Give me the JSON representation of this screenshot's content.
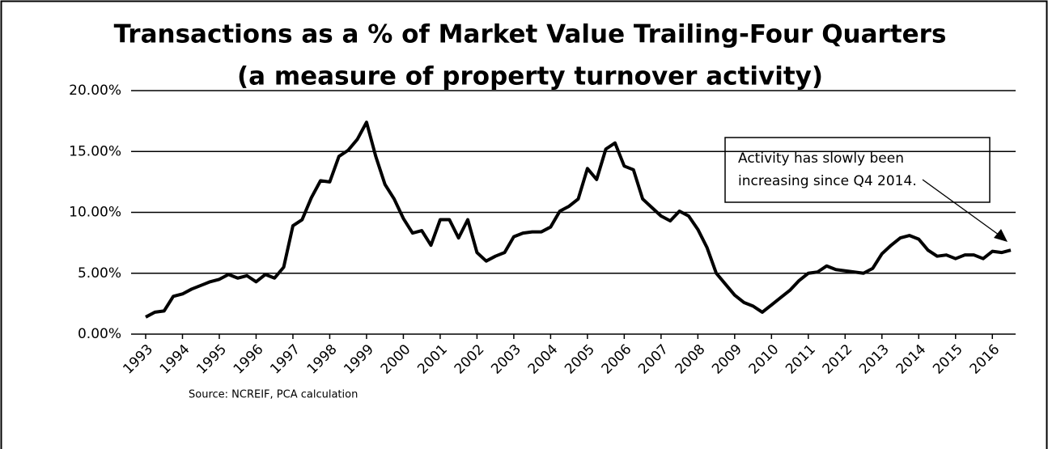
{
  "chart_data": {
    "type": "line",
    "title": "Transactions as a % of Market Value Trailing-Four Quarters",
    "subtitle": "(a measure of property turnover activity)",
    "source": "Source:  NCREIF, PCA calculation",
    "annotation": [
      "Activity has slowly been",
      "increasing since Q4 2014."
    ],
    "categories": [
      "1993",
      null,
      null,
      null,
      "1994",
      null,
      null,
      null,
      "1995",
      null,
      null,
      null,
      "1996",
      null,
      null,
      null,
      "1997",
      null,
      null,
      null,
      "1998",
      null,
      null,
      null,
      "1999",
      null,
      null,
      null,
      "2000",
      null,
      null,
      null,
      "2001",
      null,
      null,
      null,
      "2002",
      null,
      null,
      null,
      "2003",
      null,
      null,
      null,
      "2004",
      null,
      null,
      null,
      "2005",
      null,
      null,
      null,
      "2006",
      null,
      null,
      null,
      "2007",
      null,
      null,
      null,
      "2008",
      null,
      null,
      null,
      "2009",
      null,
      null,
      null,
      "2010",
      null,
      null,
      null,
      "2011",
      null,
      null,
      null,
      "2012",
      null,
      null,
      null,
      "2013",
      null,
      null,
      null,
      "2014",
      null,
      null,
      null,
      "2015",
      null,
      null,
      null,
      "2016",
      null,
      null
    ],
    "series": [
      {
        "color": "#000000",
        "values": [
          1.4,
          1.8,
          1.9,
          3.1,
          3.3,
          3.7,
          4.0,
          4.3,
          4.5,
          4.9,
          4.6,
          4.8,
          4.3,
          4.9,
          4.6,
          5.5,
          8.9,
          9.4,
          11.2,
          12.6,
          12.5,
          14.6,
          15.1,
          16.0,
          17.4,
          14.6,
          12.3,
          11.1,
          9.5,
          8.3,
          8.5,
          7.3,
          9.4,
          9.4,
          7.9,
          9.4,
          6.7,
          6.0,
          6.4,
          6.7,
          8.0,
          8.3,
          8.4,
          8.4,
          8.8,
          10.1,
          10.5,
          11.1,
          13.6,
          12.7,
          15.2,
          15.7,
          13.8,
          13.5,
          11.1,
          10.4,
          9.7,
          9.3,
          10.1,
          9.7,
          8.6,
          7.1,
          5.0,
          4.1,
          3.2,
          2.6,
          2.3,
          1.8,
          2.4,
          3.0,
          3.6,
          4.4,
          5.0,
          5.1,
          5.6,
          5.3,
          5.2,
          5.1,
          5.0,
          5.4,
          6.6,
          7.3,
          7.9,
          8.1,
          7.8,
          6.9,
          6.4,
          6.5,
          6.2,
          6.5,
          6.5,
          6.2,
          6.8,
          6.7,
          6.9
        ]
      }
    ],
    "ylim": [
      0,
      20
    ],
    "yticks": [
      {
        "value": 0,
        "label": "0.00%"
      },
      {
        "value": 5,
        "label": "5.00%"
      },
      {
        "value": 10,
        "label": "10.00%"
      },
      {
        "value": 15,
        "label": "15.00%"
      },
      {
        "value": 20,
        "label": "20.00%"
      }
    ],
    "grid": true
  }
}
